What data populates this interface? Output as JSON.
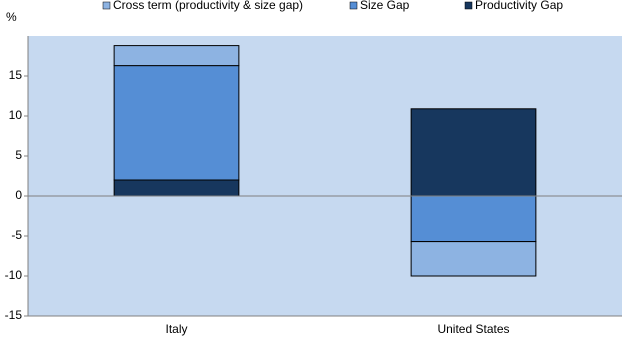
{
  "chart_data": {
    "type": "stacked-bar",
    "y_label": "%",
    "categories": [
      "Italy",
      "United States"
    ],
    "series": [
      {
        "name": "Cross term (productivity & size gap)",
        "color": "#8db3e2",
        "values": [
          2.5,
          -4.3
        ]
      },
      {
        "name": "Size Gap",
        "color": "#558ed5",
        "values": [
          14.3,
          -5.7
        ]
      },
      {
        "name": "Productivity Gap",
        "color": "#17375e",
        "values": [
          2,
          10.9
        ]
      }
    ],
    "ylim": [
      -15,
      20
    ],
    "yticks": [
      -15,
      -10,
      -5,
      0,
      5,
      10,
      15
    ]
  }
}
